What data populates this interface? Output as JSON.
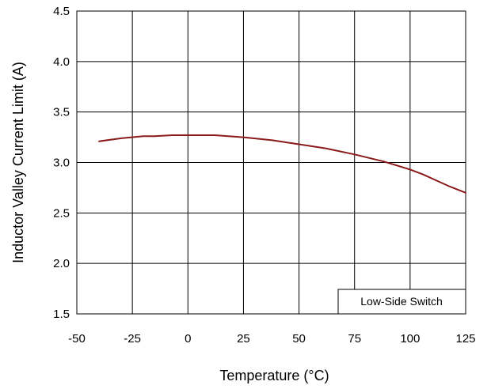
{
  "chart_data": {
    "type": "line",
    "xlabel": "Temperature (°C)",
    "ylabel": "Inductor Valley Current Limit (A)",
    "xlim": [
      -50,
      125
    ],
    "ylim": [
      1.5,
      4.5
    ],
    "xticks": [
      -50,
      -25,
      0,
      25,
      50,
      75,
      100,
      125
    ],
    "yticks": [
      1.5,
      2.0,
      2.5,
      3.0,
      3.5,
      4.0,
      4.5
    ],
    "xtick_labels": [
      "-50",
      "-25",
      "0",
      "25",
      "50",
      "75",
      "100",
      "125"
    ],
    "ytick_labels": [
      "1.5",
      "2.0",
      "2.5",
      "3.0",
      "3.5",
      "4.0",
      "4.5"
    ],
    "grid": true,
    "annotation": "Low-Side Switch",
    "series": [
      {
        "color": "#8b1a1a",
        "x": [
          -40,
          -30,
          -20,
          -15,
          -7,
          0,
          12,
          25,
          38,
          50,
          62,
          75,
          88,
          100,
          106,
          112,
          118,
          125
        ],
        "y": [
          3.21,
          3.24,
          3.26,
          3.26,
          3.27,
          3.27,
          3.27,
          3.25,
          3.22,
          3.18,
          3.14,
          3.08,
          3.01,
          2.93,
          2.88,
          2.82,
          2.76,
          2.7
        ]
      }
    ]
  }
}
